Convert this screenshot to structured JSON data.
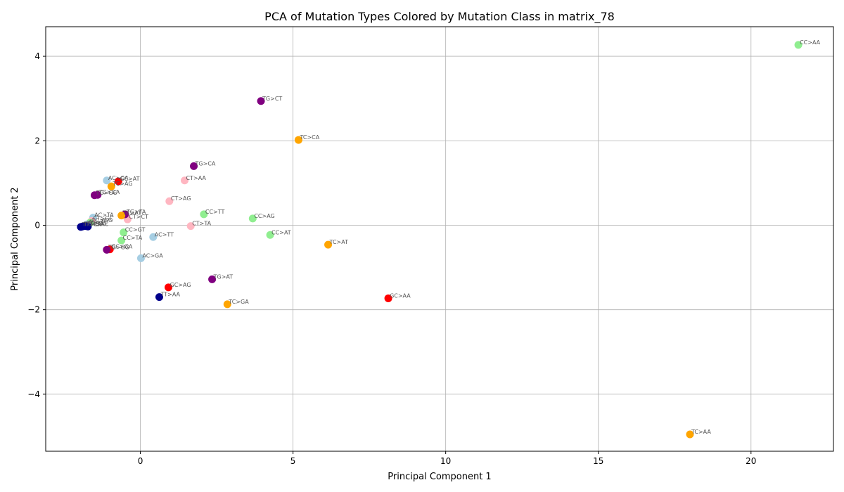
{
  "chart_data": {
    "type": "scatter",
    "title": "PCA of Mutation Types Colored by Mutation Class in matrix_78",
    "xlabel": "Principal Component 1",
    "ylabel": "Principal Component 2",
    "xlim": [
      -3.1,
      22.7
    ],
    "ylim": [
      -5.35,
      4.7
    ],
    "xticks": [
      0,
      5,
      10,
      15,
      20
    ],
    "yticks": [
      -4,
      -2,
      0,
      2,
      4
    ],
    "xtick_labels": [
      "0",
      "5",
      "10",
      "15",
      "20"
    ],
    "ytick_labels": [
      "−4",
      "−2",
      "0",
      "2",
      "4"
    ],
    "grid": true,
    "colors": {
      "AC": "#a6cee3",
      "CC": "#90ee90",
      "CT": "#ffb6c1",
      "GC": "#ff0000",
      "TC": "#ffa500",
      "TG": "#800080",
      "TT": "#00008b"
    },
    "points": [
      {
        "x": 21.55,
        "y": 4.27,
        "label": "CC>AA",
        "cls": "CC"
      },
      {
        "x": 18.0,
        "y": -4.95,
        "label": "TC>AA",
        "cls": "TC"
      },
      {
        "x": 8.12,
        "y": -1.73,
        "label": "GC>AA",
        "cls": "GC"
      },
      {
        "x": 6.15,
        "y": -0.46,
        "label": "TC>AT",
        "cls": "TC"
      },
      {
        "x": 5.18,
        "y": 2.02,
        "label": "TC>CA",
        "cls": "TC"
      },
      {
        "x": 4.25,
        "y": -0.23,
        "label": "CC>AT",
        "cls": "CC"
      },
      {
        "x": 3.95,
        "y": 2.94,
        "label": "TG>CT",
        "cls": "TG"
      },
      {
        "x": 3.68,
        "y": 0.16,
        "label": "CC>AG",
        "cls": "CC"
      },
      {
        "x": 2.85,
        "y": -1.87,
        "label": "TC>GA",
        "cls": "TC"
      },
      {
        "x": 2.35,
        "y": -1.28,
        "label": "TG>AT",
        "cls": "TG"
      },
      {
        "x": 2.08,
        "y": 0.26,
        "label": "CC>TT",
        "cls": "CC"
      },
      {
        "x": 1.75,
        "y": 1.4,
        "label": "TG>CA",
        "cls": "TG"
      },
      {
        "x": 1.65,
        "y": -0.02,
        "label": "CT>TA",
        "cls": "CT"
      },
      {
        "x": 1.45,
        "y": 1.06,
        "label": "CT>AA",
        "cls": "CT"
      },
      {
        "x": 0.95,
        "y": 0.57,
        "label": "CT>AG",
        "cls": "CT"
      },
      {
        "x": 0.92,
        "y": -1.47,
        "label": "GC>AG",
        "cls": "GC"
      },
      {
        "x": 0.62,
        "y": -1.7,
        "label": "TT>AA",
        "cls": "TT"
      },
      {
        "x": 0.42,
        "y": -0.28,
        "label": "AC>TT",
        "cls": "AC"
      },
      {
        "x": 0.02,
        "y": -0.78,
        "label": "AC>GA",
        "cls": "AC"
      },
      {
        "x": -0.55,
        "y": -0.17,
        "label": "CC>GT",
        "cls": "CC"
      },
      {
        "x": -0.62,
        "y": -0.36,
        "label": "CC>TA",
        "cls": "CC"
      },
      {
        "x": -0.42,
        "y": 0.14,
        "label": "CT>CT",
        "cls": "CT"
      },
      {
        "x": -0.5,
        "y": 0.26,
        "label": "TG>TA",
        "cls": "TG"
      },
      {
        "x": -0.62,
        "y": 0.23,
        "label": "TC>AT",
        "cls": "TC"
      },
      {
        "x": -0.72,
        "y": 1.04,
        "label": "GC>AT",
        "cls": "GC"
      },
      {
        "x": -0.95,
        "y": 0.92,
        "label": "TC>AG",
        "cls": "TC"
      },
      {
        "x": -1.1,
        "y": 1.06,
        "label": "AC>CA",
        "cls": "AC"
      },
      {
        "x": -1.0,
        "y": -0.57,
        "label": "GC>GA",
        "cls": "GC"
      },
      {
        "x": -1.1,
        "y": -0.58,
        "label": "TG>GG",
        "cls": "TG"
      },
      {
        "x": -1.4,
        "y": 0.72,
        "label": "TG>GA",
        "cls": "TG"
      },
      {
        "x": -1.5,
        "y": 0.71,
        "label": "TG>GC",
        "cls": "TG"
      },
      {
        "x": -1.55,
        "y": 0.18,
        "label": "AC>TA",
        "cls": "AC"
      },
      {
        "x": -1.6,
        "y": 0.1,
        "label": "CT>GC",
        "cls": "CT"
      },
      {
        "x": -1.65,
        "y": 0.06,
        "label": "CC>GG",
        "cls": "CC"
      },
      {
        "x": -1.75,
        "y": 0.02,
        "label": "AC>TC",
        "cls": "AC"
      },
      {
        "x": -1.72,
        "y": -0.03,
        "label": "TT>AC",
        "cls": "TT"
      },
      {
        "x": -1.8,
        "y": -0.02,
        "label": "TT>GC",
        "cls": "TT"
      },
      {
        "x": -1.9,
        "y": -0.03,
        "label": "TT>GA",
        "cls": "TT"
      },
      {
        "x": -1.95,
        "y": -0.04,
        "label": "TT>CA",
        "cls": "TT"
      }
    ]
  }
}
